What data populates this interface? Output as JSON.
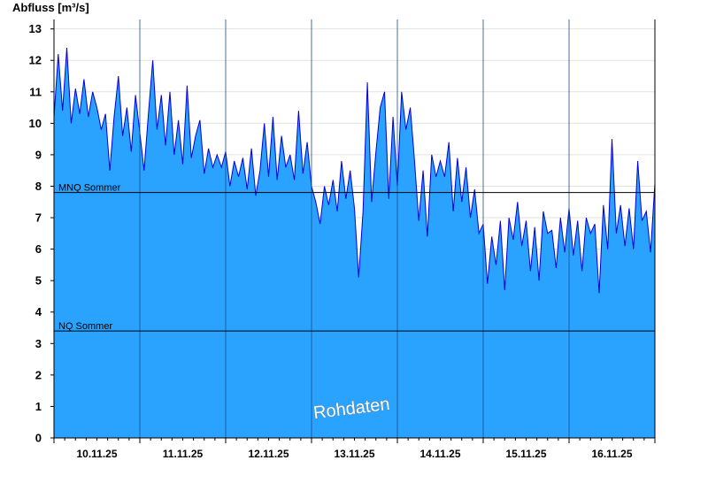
{
  "chart_data": {
    "type": "area",
    "ylabel": "Abfluss [m³/s]",
    "ylim": [
      0,
      13.3
    ],
    "yticks": [
      0,
      1,
      2,
      3,
      4,
      5,
      6,
      7,
      8,
      9,
      10,
      11,
      12,
      13
    ],
    "xlim": [
      0,
      7
    ],
    "categories": [
      "10.11.25",
      "11.11.25",
      "12.11.25",
      "13.11.25",
      "14.11.25",
      "15.11.25",
      "16.11.25"
    ],
    "grid": true,
    "colors": {
      "fill": "#29a3ff",
      "line": "#0000dd",
      "reference": "#000000",
      "axis": "#000000"
    },
    "reference_lines": [
      {
        "label": "MNQ Sommer",
        "value": 7.8
      },
      {
        "label": "NQ Sommer",
        "value": 3.4
      }
    ],
    "watermark": "Rohdaten",
    "series": [
      {
        "x": [
          0,
          0.05,
          0.1,
          0.15,
          0.2,
          0.25,
          0.3,
          0.35,
          0.4,
          0.45,
          0.5,
          0.55,
          0.6,
          0.65,
          0.7,
          0.75,
          0.8,
          0.85,
          0.9,
          0.95,
          1,
          1.05,
          1.1,
          1.15,
          1.2,
          1.25,
          1.3,
          1.35,
          1.4,
          1.45,
          1.5,
          1.55,
          1.6,
          1.65,
          1.7,
          1.75,
          1.8,
          1.85,
          1.9,
          1.95,
          2,
          2.05,
          2.1,
          2.15,
          2.2,
          2.25,
          2.3,
          2.35,
          2.4,
          2.45,
          2.5,
          2.55,
          2.6,
          2.65,
          2.7,
          2.75,
          2.8,
          2.85,
          2.9,
          2.95,
          3,
          3.05,
          3.1,
          3.15,
          3.2,
          3.25,
          3.3,
          3.35,
          3.4,
          3.45,
          3.5,
          3.55,
          3.6,
          3.65,
          3.7,
          3.75,
          3.8,
          3.85,
          3.9,
          3.95,
          4,
          4.05,
          4.1,
          4.15,
          4.2,
          4.25,
          4.3,
          4.35,
          4.4,
          4.45,
          4.5,
          4.55,
          4.6,
          4.65,
          4.7,
          4.75,
          4.8,
          4.85,
          4.9,
          4.95,
          5,
          5.05,
          5.1,
          5.15,
          5.2,
          5.25,
          5.3,
          5.35,
          5.4,
          5.45,
          5.5,
          5.55,
          5.6,
          5.65,
          5.7,
          5.75,
          5.8,
          5.85,
          5.9,
          5.95,
          6,
          6.05,
          6.1,
          6.15,
          6.2,
          6.25,
          6.3,
          6.35,
          6.4,
          6.45,
          6.5,
          6.55,
          6.6,
          6.65,
          6.7,
          6.75,
          6.8,
          6.85,
          6.9,
          6.95,
          7
        ],
        "values": [
          10.2,
          12.2,
          10.4,
          12.4,
          10.0,
          11.1,
          10.3,
          11.4,
          10.2,
          11.0,
          10.5,
          9.8,
          10.3,
          8.5,
          10.2,
          11.5,
          9.6,
          10.5,
          9.1,
          10.9,
          9.7,
          8.5,
          10.3,
          12.0,
          9.8,
          10.9,
          9.3,
          11.0,
          9.0,
          10.1,
          8.7,
          11.2,
          8.9,
          9.6,
          10.1,
          8.4,
          9.2,
          8.6,
          9.0,
          8.6,
          9.1,
          8.0,
          8.8,
          8.3,
          8.9,
          7.9,
          9.2,
          7.7,
          8.5,
          10.0,
          8.3,
          10.2,
          8.2,
          9.6,
          8.6,
          9.0,
          8.2,
          10.4,
          8.4,
          9.4,
          8.0,
          7.5,
          6.8,
          8.0,
          7.4,
          8.2,
          7.2,
          8.8,
          7.6,
          8.5,
          7.3,
          5.1,
          7.2,
          11.3,
          7.5,
          9.1,
          10.5,
          11.0,
          7.6,
          10.2,
          8.0,
          11.0,
          9.8,
          10.5,
          8.8,
          6.9,
          8.5,
          6.4,
          9.0,
          8.3,
          8.8,
          8.3,
          9.4,
          7.2,
          8.9,
          7.5,
          8.6,
          7.0,
          7.9,
          6.5,
          6.8,
          4.9,
          6.4,
          5.5,
          6.9,
          4.7,
          7.0,
          6.3,
          7.5,
          6.1,
          6.9,
          5.3,
          6.7,
          5.0,
          7.2,
          6.5,
          6.6,
          5.4,
          7.0,
          5.9,
          7.3,
          5.8,
          6.9,
          5.3,
          7.0,
          6.5,
          6.8,
          4.6,
          7.4,
          6.0,
          9.5,
          6.5,
          7.4,
          6.1,
          7.3,
          6.0,
          8.8,
          6.9,
          7.2,
          5.9,
          8.1
        ]
      }
    ]
  }
}
